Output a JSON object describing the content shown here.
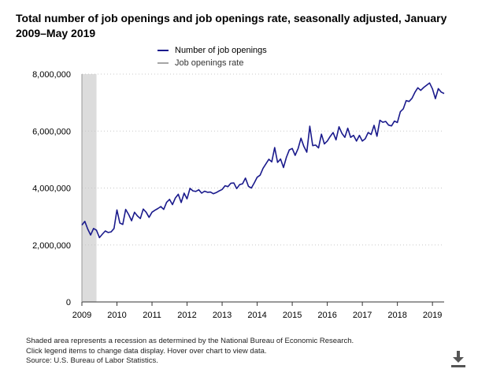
{
  "title": "Total number of job openings and job openings rate, seasonally adjusted, January 2009–May 2019",
  "legend": [
    {
      "label": "Number of job openings",
      "color": "#1a1a8c"
    },
    {
      "label": "Job openings rate",
      "color": "#a6a6a6"
    }
  ],
  "footnotes": [
    "Shaded area represents a recession as determined by the National Bureau of Economic Research.",
    "Click legend items to change data display. Hover over chart to view data.",
    "Source: U.S. Bureau of Labor Statistics."
  ],
  "icons": {
    "download": "download-icon"
  },
  "colors": {
    "series": "#1a1a8c",
    "recession": "#dcdcdc",
    "grid": "#c8c8c8"
  },
  "chart_data": {
    "type": "line",
    "title": "Total number of job openings and job openings rate, seasonally adjusted, January 2009–May 2019",
    "xlabel": "",
    "ylabel": "",
    "ylim": [
      0,
      8000000
    ],
    "xlim": [
      "2009-01",
      "2019-05"
    ],
    "y_ticks": [
      "0",
      "2,000,000",
      "4,000,000",
      "6,000,000",
      "8,000,000"
    ],
    "y_tick_values": [
      0,
      2000000,
      4000000,
      6000000,
      8000000
    ],
    "x_ticks": [
      "2009",
      "2010",
      "2011",
      "2012",
      "2013",
      "2014",
      "2015",
      "2016",
      "2017",
      "2018",
      "2019"
    ],
    "grid": "horizontal dotted",
    "recession": {
      "start": "2009-01",
      "end": "2009-06"
    },
    "series": [
      {
        "name": "Number of job openings",
        "x": [
          "2009-01",
          "2009-02",
          "2009-03",
          "2009-04",
          "2009-05",
          "2009-06",
          "2009-07",
          "2009-08",
          "2009-09",
          "2009-10",
          "2009-11",
          "2009-12",
          "2010-01",
          "2010-02",
          "2010-03",
          "2010-04",
          "2010-05",
          "2010-06",
          "2010-07",
          "2010-08",
          "2010-09",
          "2010-10",
          "2010-11",
          "2010-12",
          "2011-01",
          "2011-02",
          "2011-03",
          "2011-04",
          "2011-05",
          "2011-06",
          "2011-07",
          "2011-08",
          "2011-09",
          "2011-10",
          "2011-11",
          "2011-12",
          "2012-01",
          "2012-02",
          "2012-03",
          "2012-04",
          "2012-05",
          "2012-06",
          "2012-07",
          "2012-08",
          "2012-09",
          "2012-10",
          "2012-11",
          "2012-12",
          "2013-01",
          "2013-02",
          "2013-03",
          "2013-04",
          "2013-05",
          "2013-06",
          "2013-07",
          "2013-08",
          "2013-09",
          "2013-10",
          "2013-11",
          "2013-12",
          "2014-01",
          "2014-02",
          "2014-03",
          "2014-04",
          "2014-05",
          "2014-06",
          "2014-07",
          "2014-08",
          "2014-09",
          "2014-10",
          "2014-11",
          "2014-12",
          "2015-01",
          "2015-02",
          "2015-03",
          "2015-04",
          "2015-05",
          "2015-06",
          "2015-07",
          "2015-08",
          "2015-09",
          "2015-10",
          "2015-11",
          "2015-12",
          "2016-01",
          "2016-02",
          "2016-03",
          "2016-04",
          "2016-05",
          "2016-06",
          "2016-07",
          "2016-08",
          "2016-09",
          "2016-10",
          "2016-11",
          "2016-12",
          "2017-01",
          "2017-02",
          "2017-03",
          "2017-04",
          "2017-05",
          "2017-06",
          "2017-07",
          "2017-08",
          "2017-09",
          "2017-10",
          "2017-11",
          "2017-12",
          "2018-01",
          "2018-02",
          "2018-03",
          "2018-04",
          "2018-05",
          "2018-06",
          "2018-07",
          "2018-08",
          "2018-09",
          "2018-10",
          "2018-11",
          "2018-12",
          "2019-01",
          "2019-02",
          "2019-03",
          "2019-04",
          "2019-05"
        ],
        "values": [
          2700000,
          2830000,
          2560000,
          2350000,
          2580000,
          2520000,
          2260000,
          2380000,
          2490000,
          2440000,
          2460000,
          2580000,
          3230000,
          2770000,
          2720000,
          3250000,
          3070000,
          2850000,
          3150000,
          3020000,
          2930000,
          3260000,
          3150000,
          2970000,
          3150000,
          3220000,
          3280000,
          3350000,
          3250000,
          3500000,
          3600000,
          3420000,
          3650000,
          3780000,
          3490000,
          3820000,
          3620000,
          3990000,
          3900000,
          3880000,
          3940000,
          3820000,
          3890000,
          3850000,
          3860000,
          3800000,
          3840000,
          3900000,
          3950000,
          4080000,
          4050000,
          4170000,
          4180000,
          3980000,
          4120000,
          4150000,
          4350000,
          4060000,
          4000000,
          4180000,
          4380000,
          4450000,
          4690000,
          4850000,
          5010000,
          4920000,
          5420000,
          4900000,
          5020000,
          4720000,
          5080000,
          5340000,
          5390000,
          5150000,
          5380000,
          5750000,
          5460000,
          5260000,
          6170000,
          5490000,
          5510000,
          5410000,
          5890000,
          5550000,
          5650000,
          5810000,
          5950000,
          5690000,
          6150000,
          5920000,
          5780000,
          6100000,
          5780000,
          5850000,
          5650000,
          5850000,
          5650000,
          5730000,
          5950000,
          5880000,
          6200000,
          5820000,
          6380000,
          6310000,
          6340000,
          6210000,
          6180000,
          6350000,
          6300000,
          6680000,
          6780000,
          7070000,
          7040000,
          7150000,
          7360000,
          7520000,
          7430000,
          7530000,
          7610000,
          7690000,
          7480000,
          7140000,
          7490000,
          7370000,
          7320000
        ]
      }
    ]
  }
}
